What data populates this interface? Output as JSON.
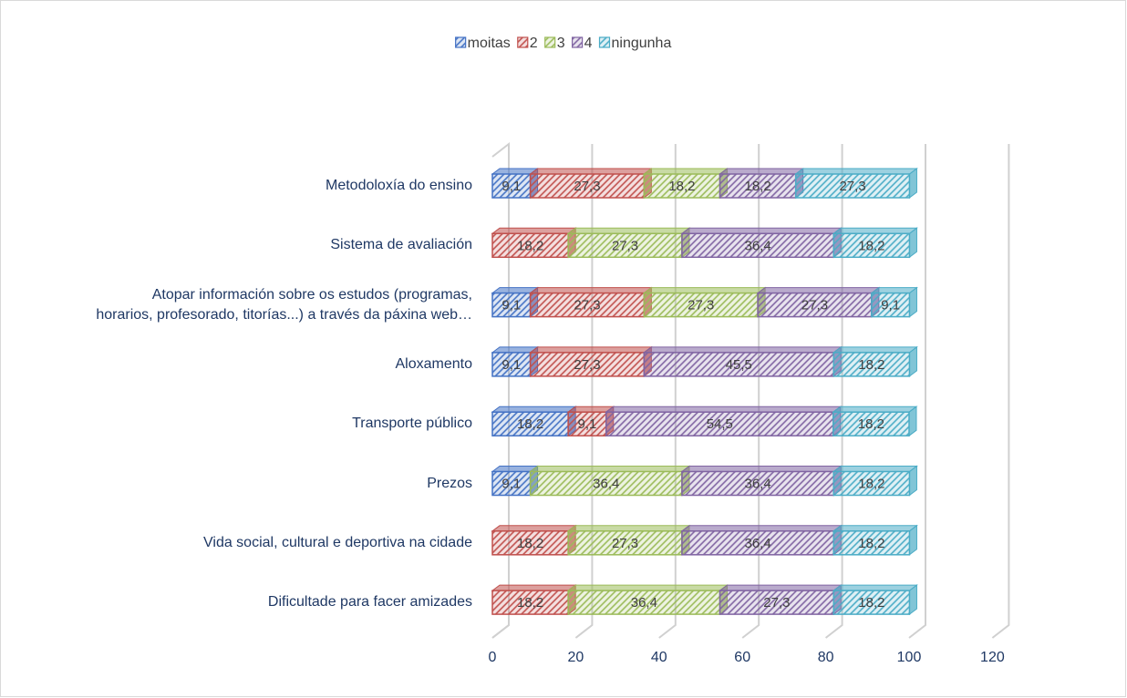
{
  "chart_data": {
    "type": "bar3d_stacked_horizontal",
    "categories": [
      "Metodoloxía do ensino",
      "Sistema de avaliación",
      "Atopar información sobre os estudos (programas,\nhorarios, profesorado, titorías...) a través da páxina web…",
      "Aloxamento",
      "Transporte público",
      "Prezos",
      "Vida social, cultural e deportiva na cidade",
      "Dificultade para facer amizades"
    ],
    "series": [
      {
        "name": "moitas",
        "color": "#4472c4",
        "values": [
          9.1,
          null,
          9.1,
          9.1,
          18.2,
          9.1,
          null,
          null
        ],
        "value_labels": [
          "9,1",
          null,
          "9,1",
          "9,1",
          "18,2",
          "9,1",
          null,
          null
        ]
      },
      {
        "name": "2",
        "color": "#c0504d",
        "values": [
          27.3,
          18.2,
          27.3,
          27.3,
          9.1,
          null,
          18.2,
          18.2
        ],
        "value_labels": [
          "27,3",
          "18,2",
          "27,3",
          "27,3",
          "9,1",
          null,
          "18,2",
          "18,2"
        ]
      },
      {
        "name": "3",
        "color": "#9bbb59",
        "values": [
          18.2,
          27.3,
          27.3,
          null,
          null,
          36.4,
          27.3,
          36.4
        ],
        "value_labels": [
          "18,2",
          "27,3",
          "27,3",
          null,
          null,
          "36,4",
          "27,3",
          "36,4"
        ]
      },
      {
        "name": "4",
        "color": "#8064a2",
        "values": [
          18.2,
          36.4,
          27.3,
          45.5,
          54.5,
          36.4,
          36.4,
          27.3
        ],
        "value_labels": [
          "18,2",
          "36,4",
          "27,3",
          "45,5",
          "54,5",
          "36,4",
          "36,4",
          "27,3"
        ]
      },
      {
        "name": "ningunha",
        "color": "#4bacc6",
        "values": [
          27.3,
          18.2,
          9.1,
          18.2,
          18.2,
          18.2,
          18.2,
          18.2
        ],
        "value_labels": [
          "27,3",
          "18,2",
          "9,1",
          "18,2",
          "18,2",
          "18,2",
          "18,2",
          "18,2"
        ]
      }
    ],
    "xlim": [
      0,
      120
    ],
    "xticks": [
      0,
      20,
      40,
      60,
      80,
      100,
      120
    ],
    "grid": true,
    "legend": "top"
  }
}
